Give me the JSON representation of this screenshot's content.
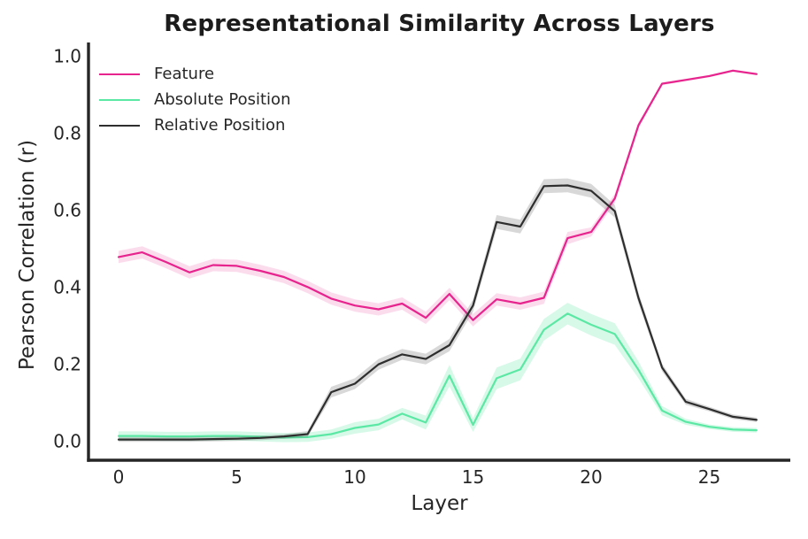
{
  "figure": {
    "title": "Representational Similarity Across Layers",
    "xlabel": "Layer",
    "ylabel": "Pearson Correlation (r)"
  },
  "chart_data": {
    "type": "line",
    "title": "Representational Similarity Across Layers",
    "xlabel": "Layer",
    "ylabel": "Pearson Correlation (r)",
    "x": [
      0,
      1,
      2,
      3,
      4,
      5,
      6,
      7,
      8,
      9,
      10,
      11,
      12,
      13,
      14,
      15,
      16,
      17,
      18,
      19,
      20,
      21,
      22,
      23,
      24,
      25,
      26,
      27
    ],
    "xticks": [
      0,
      5,
      10,
      15,
      20,
      25
    ],
    "ytick_labels": [
      "0.0",
      "0.2",
      "0.4",
      "0.6",
      "0.8",
      "1.0"
    ],
    "yticks": [
      0.0,
      0.2,
      0.4,
      0.6,
      0.8,
      1.0
    ],
    "xlim": [
      -1.3,
      28.4
    ],
    "ylim": [
      -0.05,
      1.04
    ],
    "grid": false,
    "legend_position": "upper left",
    "axis_color": "#262626",
    "background_color": "#ffffff",
    "series": [
      {
        "name": "Feature",
        "color": "#e7238e",
        "band_color": "rgba(231,35,142,0.16)",
        "values": [
          0.478,
          0.49,
          0.465,
          0.438,
          0.457,
          0.455,
          0.442,
          0.426,
          0.4,
          0.37,
          0.352,
          0.342,
          0.357,
          0.32,
          0.382,
          0.314,
          0.368,
          0.357,
          0.372,
          0.527,
          0.543,
          0.63,
          0.82,
          0.928,
          0.938,
          0.948,
          0.962,
          0.953
        ],
        "band": [
          0.016,
          0.016,
          0.016,
          0.016,
          0.016,
          0.016,
          0.016,
          0.016,
          0.016,
          0.016,
          0.016,
          0.016,
          0.016,
          0.016,
          0.016,
          0.016,
          0.016,
          0.016,
          0.016,
          0.016,
          0.012,
          0.012,
          0.008,
          0.004,
          0.003,
          0.003,
          0.003,
          0.003
        ]
      },
      {
        "name": "Absolute Position",
        "color": "#5be8a4",
        "band_color": "rgba(91,232,164,0.25)",
        "values": [
          0.013,
          0.013,
          0.012,
          0.012,
          0.013,
          0.013,
          0.011,
          0.009,
          0.01,
          0.018,
          0.034,
          0.043,
          0.071,
          0.048,
          0.17,
          0.042,
          0.163,
          0.186,
          0.289,
          0.331,
          0.302,
          0.278,
          0.185,
          0.079,
          0.05,
          0.037,
          0.03,
          0.028
        ],
        "band": [
          0.012,
          0.012,
          0.012,
          0.012,
          0.012,
          0.012,
          0.012,
          0.012,
          0.012,
          0.012,
          0.015,
          0.015,
          0.015,
          0.018,
          0.028,
          0.018,
          0.028,
          0.028,
          0.028,
          0.028,
          0.028,
          0.028,
          0.022,
          0.012,
          0.008,
          0.006,
          0.006,
          0.006
        ]
      },
      {
        "name": "Relative Position",
        "color": "#2e2e2e",
        "band_color": "rgba(90,90,90,0.24)",
        "values": [
          0.004,
          0.004,
          0.004,
          0.004,
          0.005,
          0.006,
          0.008,
          0.012,
          0.018,
          0.127,
          0.149,
          0.199,
          0.225,
          0.213,
          0.249,
          0.352,
          0.569,
          0.557,
          0.662,
          0.664,
          0.65,
          0.597,
          0.372,
          0.191,
          0.102,
          0.083,
          0.063,
          0.055
        ],
        "band": [
          0.006,
          0.006,
          0.006,
          0.006,
          0.006,
          0.006,
          0.006,
          0.006,
          0.008,
          0.014,
          0.014,
          0.014,
          0.014,
          0.014,
          0.016,
          0.016,
          0.018,
          0.018,
          0.018,
          0.018,
          0.018,
          0.016,
          0.014,
          0.01,
          0.008,
          0.006,
          0.006,
          0.006
        ]
      }
    ]
  }
}
